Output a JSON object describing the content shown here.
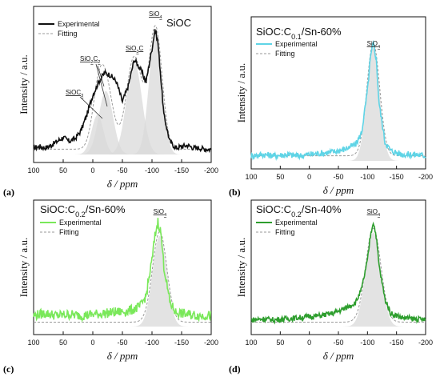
{
  "figure": {
    "panels": [
      {
        "letter": "(a)",
        "title": "SiOC"
      },
      {
        "letter": "(b)",
        "title": "SiOC:C0.1/Sn-60%"
      },
      {
        "letter": "(c)",
        "title": "SiOC:C0.2/Sn-60%"
      },
      {
        "letter": "(d)",
        "title": "SiOC:C0.2/Sn-40%"
      }
    ]
  },
  "chart_data": [
    {
      "type": "line",
      "panel": "(a)",
      "title": "SiOC",
      "xlabel": "δ / ppm",
      "ylabel": "Intensity / a.u.",
      "xlim": [
        100,
        -200
      ],
      "xticks": [
        100,
        50,
        0,
        -50,
        -100,
        -150,
        -200
      ],
      "colors": {
        "experimental": "#111111",
        "fitting": "#9a9a9a",
        "fill": "#d9d9d9"
      },
      "legend": [
        "Experimental",
        "Fitting"
      ],
      "legend_position": "top-left",
      "peak_labels": [
        "SiOC3",
        "SiO2C2",
        "SiO3C",
        "SiO4"
      ],
      "components": [
        {
          "label": "SiOC3",
          "center": -8,
          "height": 0.3,
          "width": 10
        },
        {
          "label": "SiO2C2",
          "center": -22,
          "height": 0.48,
          "width": 12
        },
        {
          "label": "SiO3C",
          "center": -70,
          "height": 0.7,
          "width": 13
        },
        {
          "label": "SiO4",
          "center": -106,
          "height": 0.92,
          "width": 11
        }
      ],
      "series": [
        {
          "name": "Experimental",
          "x": [
            100,
            90,
            80,
            70,
            60,
            50,
            40,
            30,
            20,
            10,
            0,
            -10,
            -20,
            -30,
            -40,
            -50,
            -60,
            -70,
            -80,
            -90,
            -100,
            -105,
            -110,
            -120,
            -130,
            -140,
            -150,
            -160,
            -170,
            -180,
            -190,
            -200
          ],
          "y": [
            0.05,
            0.06,
            0.05,
            0.07,
            0.1,
            0.13,
            0.1,
            0.12,
            0.18,
            0.3,
            0.45,
            0.55,
            0.62,
            0.6,
            0.55,
            0.4,
            0.52,
            0.72,
            0.65,
            0.55,
            0.8,
            0.95,
            0.85,
            0.3,
            0.1,
            0.05,
            0.06,
            0.07,
            0.05,
            0.05,
            0.04,
            0.04
          ]
        },
        {
          "name": "Fitting"
        }
      ]
    },
    {
      "type": "line",
      "panel": "(b)",
      "title": "SiOC:C0.1/Sn-60%",
      "xlabel": "δ / ppm",
      "ylabel": "Intensity / a.u.",
      "xlim": [
        100,
        -200
      ],
      "xticks": [
        100,
        50,
        0,
        -50,
        -100,
        -150,
        -200
      ],
      "colors": {
        "experimental": "#5fd4e6",
        "fitting": "#9a9a9a",
        "fill": "#d9d9d9"
      },
      "legend": [
        "Experimental",
        "Fitting"
      ],
      "legend_position": "top-left",
      "peak_labels": [
        "SiO4"
      ],
      "components": [
        {
          "label": "SiO4",
          "center": -110,
          "height": 0.88,
          "width": 11
        }
      ],
      "series": [
        {
          "name": "Experimental",
          "x": [
            100,
            80,
            60,
            40,
            20,
            0,
            -20,
            -40,
            -60,
            -80,
            -90,
            -100,
            -105,
            -110,
            -115,
            -120,
            -130,
            -140,
            -160,
            -180,
            -200
          ],
          "y": [
            0.04,
            0.05,
            0.04,
            0.05,
            0.04,
            0.05,
            0.06,
            0.07,
            0.09,
            0.13,
            0.22,
            0.55,
            0.8,
            0.92,
            0.8,
            0.45,
            0.15,
            0.08,
            0.05,
            0.05,
            0.04
          ]
        },
        {
          "name": "Fitting"
        }
      ]
    },
    {
      "type": "line",
      "panel": "(c)",
      "title": "SiOC:C0.2/Sn-60%",
      "xlabel": "δ / ppm",
      "ylabel": "Intensity / a.u.",
      "xlim": [
        100,
        -200
      ],
      "xticks": [
        100,
        50,
        0,
        -50,
        -100,
        -150,
        -200
      ],
      "colors": {
        "experimental": "#7ae85a",
        "fitting": "#9a9a9a",
        "fill": "#d9d9d9"
      },
      "legend": [
        "Experimental",
        "Fitting"
      ],
      "legend_position": "top-left",
      "peak_labels": [
        "SiO4"
      ],
      "components": [
        {
          "label": "SiO4",
          "center": -113,
          "height": 0.82,
          "width": 12
        }
      ],
      "series": [
        {
          "name": "Experimental",
          "x": [
            100,
            80,
            60,
            40,
            20,
            0,
            -20,
            -40,
            -60,
            -80,
            -90,
            -100,
            -105,
            -110,
            -115,
            -120,
            -130,
            -140,
            -160,
            -180,
            -200
          ],
          "y": [
            0.1,
            0.12,
            0.1,
            0.11,
            0.1,
            0.11,
            0.12,
            0.13,
            0.14,
            0.18,
            0.28,
            0.6,
            0.82,
            0.95,
            0.85,
            0.55,
            0.22,
            0.13,
            0.11,
            0.1,
            0.1
          ]
        },
        {
          "name": "Fitting"
        }
      ]
    },
    {
      "type": "line",
      "panel": "(d)",
      "title": "SiOC:C0.2/Sn-40%",
      "xlabel": "δ / ppm",
      "ylabel": "Intensity / a.u.",
      "xlim": [
        100,
        -200
      ],
      "xticks": [
        100,
        50,
        0,
        -50,
        -100,
        -150,
        -200
      ],
      "colors": {
        "experimental": "#2e9e2e",
        "fitting": "#9a9a9a",
        "fill": "#d9d9d9"
      },
      "legend": [
        "Experimental",
        "Fitting"
      ],
      "legend_position": "top-left",
      "peak_labels": [
        "SiO4"
      ],
      "components": [
        {
          "label": "SiO4",
          "center": -110,
          "height": 0.85,
          "width": 13
        }
      ],
      "series": [
        {
          "name": "Experimental",
          "x": [
            100,
            80,
            60,
            40,
            20,
            0,
            -20,
            -40,
            -60,
            -80,
            -90,
            -100,
            -105,
            -110,
            -115,
            -120,
            -130,
            -140,
            -160,
            -180,
            -200
          ],
          "y": [
            0.06,
            0.07,
            0.06,
            0.07,
            0.08,
            0.09,
            0.1,
            0.12,
            0.16,
            0.22,
            0.34,
            0.6,
            0.82,
            0.95,
            0.82,
            0.55,
            0.25,
            0.12,
            0.08,
            0.07,
            0.06
          ]
        },
        {
          "name": "Fitting"
        }
      ]
    }
  ]
}
